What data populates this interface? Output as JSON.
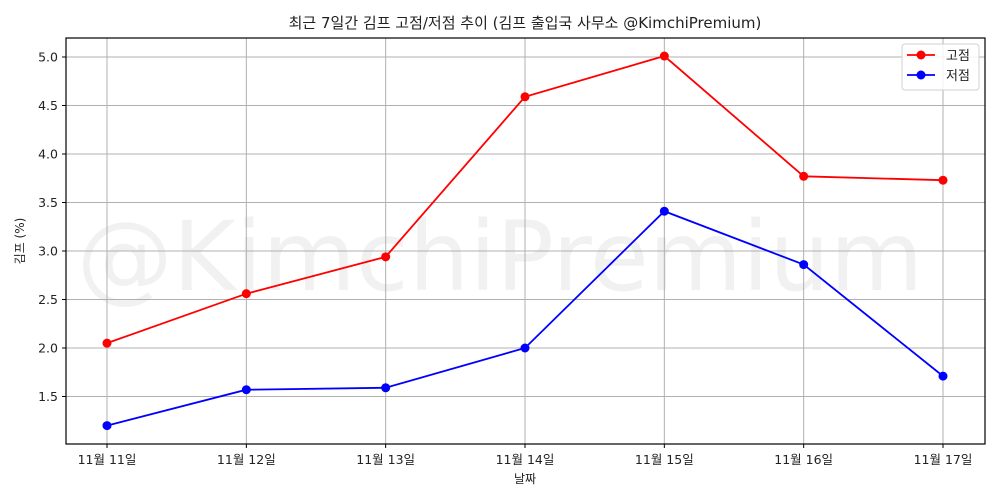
{
  "chart_data": {
    "type": "line",
    "title": "최근 7일간 김프 고점/저점 추이 (김프 출입국 사무소 @KimchiPremium)",
    "xlabel": "날짜",
    "ylabel": "김프 (%)",
    "categories": [
      "11월 11일",
      "11월 12일",
      "11월 13일",
      "11월 14일",
      "11월 15일",
      "11월 16일",
      "11월 17일"
    ],
    "series": [
      {
        "name": "고점",
        "color": "#ff0000",
        "values": [
          2.05,
          2.56,
          2.94,
          4.59,
          5.01,
          3.77,
          3.73
        ]
      },
      {
        "name": "저점",
        "color": "#0000ff",
        "values": [
          1.2,
          1.57,
          1.59,
          2.0,
          3.41,
          2.86,
          1.71
        ]
      }
    ],
    "yticks": [
      "1.5",
      "2.0",
      "2.5",
      "3.0",
      "3.5",
      "4.0",
      "4.5",
      "5.0"
    ],
    "ylim": [
      1.01,
      5.2
    ],
    "grid": true,
    "legend_position": "upper right",
    "watermark": "@KimchiPremium"
  }
}
